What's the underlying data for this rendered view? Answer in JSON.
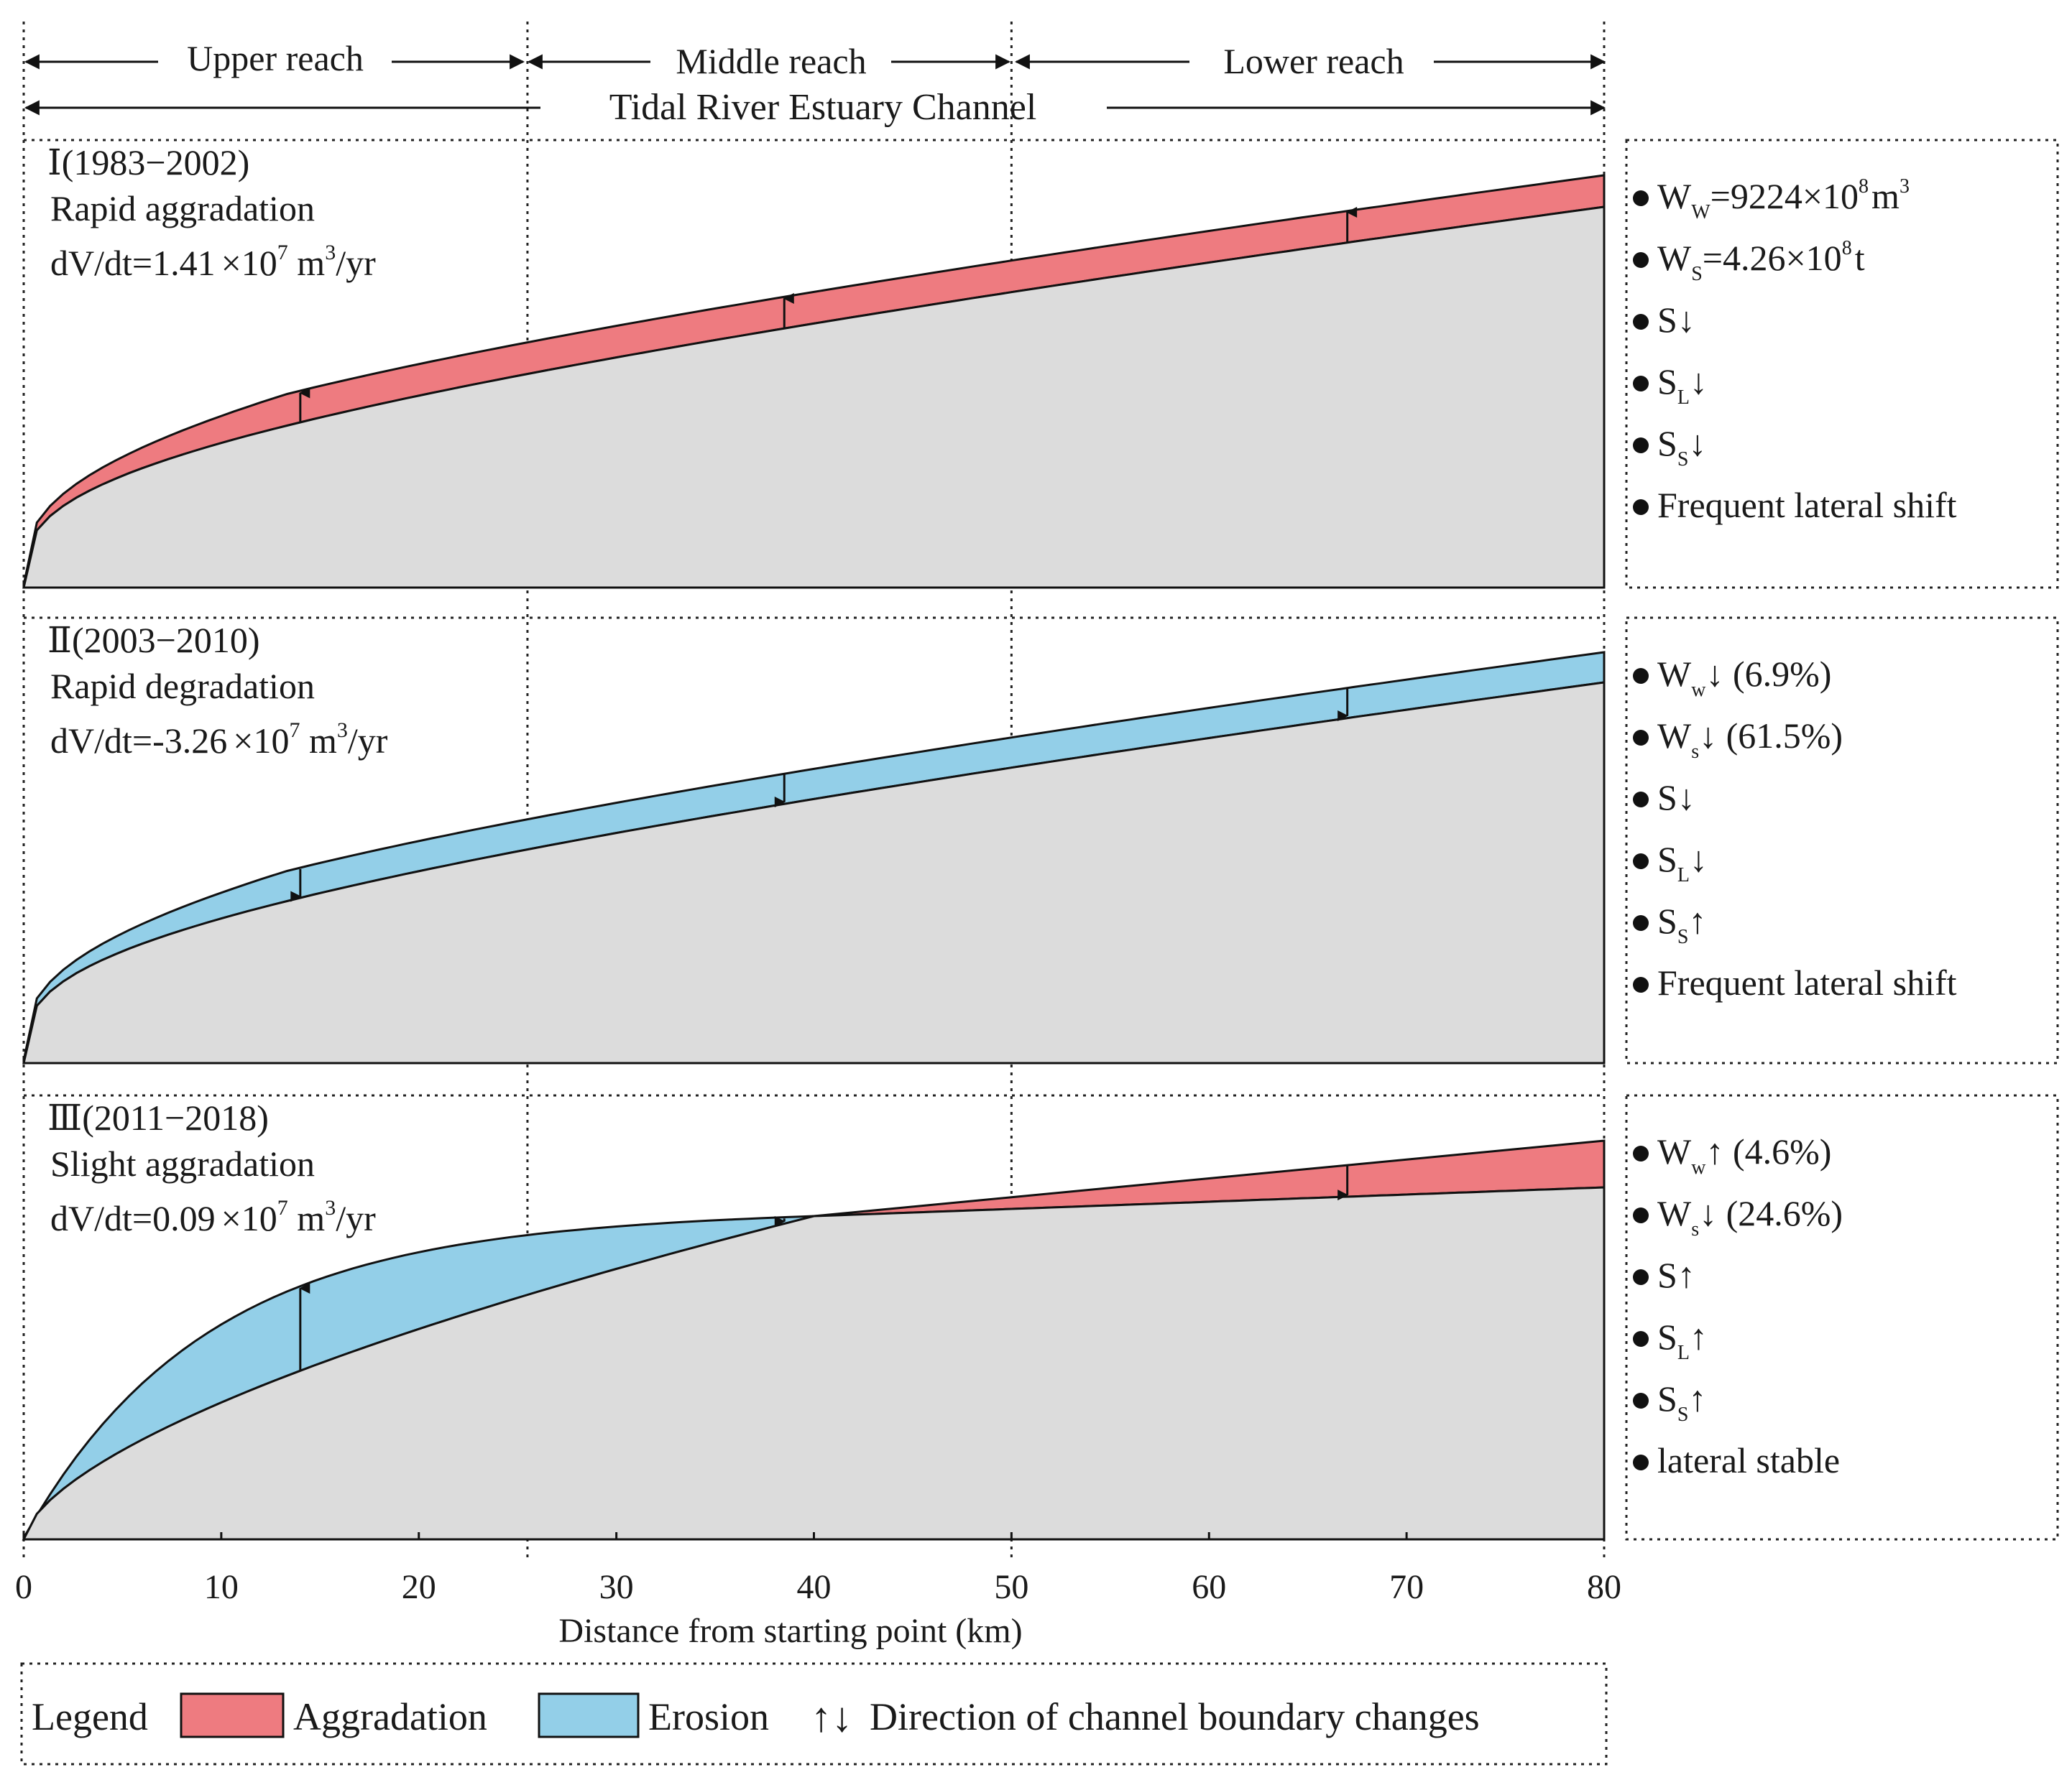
{
  "header": {
    "reaches": [
      "Upper reach",
      "Middle reach",
      "Lower reach"
    ],
    "channel": "Tidal River Estuary Channel"
  },
  "panels": [
    {
      "roman": "Ⅰ",
      "period": "(1983−2002)",
      "title": "Rapid aggradation",
      "rate_prefix": "dV/dt=",
      "rate_value": "1.41",
      "rate_unit": "×10",
      "rate_exp": "7",
      "rate_tail1": " m",
      "rate_tail_exp": "3",
      "rate_tail2": "/yr",
      "band_type": "aggradation",
      "arrow_dir": "up",
      "notes": [
        {
          "main": "W",
          "sub": "W",
          "rest": "=9224×10",
          "sup": "8",
          "rest2": "m",
          "sup2": "3"
        },
        {
          "main": "W",
          "sub": "S",
          "rest": "=4.26×10",
          "sup": "8",
          "rest2": "t",
          "sup2": ""
        },
        {
          "main": "S",
          "sub": "",
          "rest": "↓",
          "sup": "",
          "rest2": "",
          "sup2": ""
        },
        {
          "main": "S",
          "sub": "L",
          "rest": "↓",
          "sup": "",
          "rest2": "",
          "sup2": ""
        },
        {
          "main": "S",
          "sub": "S",
          "rest": "↓",
          "sup": "",
          "rest2": "",
          "sup2": ""
        },
        {
          "main": "Frequent lateral shift",
          "sub": "",
          "rest": "",
          "sup": "",
          "rest2": "",
          "sup2": ""
        }
      ]
    },
    {
      "roman": "Ⅱ",
      "period": "(2003−2010)",
      "title": "Rapid degradation",
      "rate_prefix": "dV/dt=",
      "rate_value": "-3.26",
      "rate_unit": "×10",
      "rate_exp": "7",
      "rate_tail1": " m",
      "rate_tail_exp": "3",
      "rate_tail2": "/yr",
      "band_type": "erosion",
      "arrow_dir": "down",
      "notes": [
        {
          "main": "W",
          "sub": "w",
          "rest": "↓ (6.9%)",
          "sup": "",
          "rest2": "",
          "sup2": ""
        },
        {
          "main": "W",
          "sub": "s",
          "rest": "↓ (61.5%)",
          "sup": "",
          "rest2": "",
          "sup2": ""
        },
        {
          "main": "S",
          "sub": "",
          "rest": "↓",
          "sup": "",
          "rest2": "",
          "sup2": ""
        },
        {
          "main": "S",
          "sub": "L",
          "rest": "↓",
          "sup": "",
          "rest2": "",
          "sup2": ""
        },
        {
          "main": "S",
          "sub": "S",
          "rest": "↑",
          "sup": "",
          "rest2": "",
          "sup2": ""
        },
        {
          "main": "Frequent lateral shift",
          "sub": "",
          "rest": "",
          "sup": "",
          "rest2": "",
          "sup2": ""
        }
      ]
    },
    {
      "roman": "Ⅲ",
      "period": "(2011−2018)",
      "title": "Slight aggradation",
      "rate_prefix": "dV/dt=",
      "rate_value": "0.09",
      "rate_unit": "×10",
      "rate_exp": "7",
      "rate_tail1": " m",
      "rate_tail_exp": "3",
      "rate_tail2": "/yr",
      "band_type": "mixed",
      "arrow_dir": "mixed",
      "notes": [
        {
          "main": "W",
          "sub": "w",
          "rest": "↑ (4.6%)",
          "sup": "",
          "rest2": "",
          "sup2": ""
        },
        {
          "main": "W",
          "sub": "s",
          "rest": "↓ (24.6%)",
          "sup": "",
          "rest2": "",
          "sup2": ""
        },
        {
          "main": "S",
          "sub": "",
          "rest": "↑",
          "sup": "",
          "rest2": "",
          "sup2": ""
        },
        {
          "main": "S",
          "sub": "L",
          "rest": "↑",
          "sup": "",
          "rest2": "",
          "sup2": ""
        },
        {
          "main": "S",
          "sub": "S",
          "rest": "↑",
          "sup": "",
          "rest2": "",
          "sup2": ""
        },
        {
          "main": "lateral stable",
          "sub": "",
          "rest": "",
          "sup": "",
          "rest2": "",
          "sup2": ""
        }
      ]
    }
  ],
  "chart_data": {
    "type": "area",
    "xlabel": "Distance from starting point (km)",
    "xlim": [
      0,
      80
    ],
    "xticks": [
      0,
      10,
      20,
      30,
      40,
      50,
      60,
      70,
      80
    ],
    "tick_labels": [
      "0",
      "10",
      "20",
      "30",
      "40",
      "50",
      "60",
      "70",
      "80"
    ],
    "reach_boundaries_km": [
      0,
      25.5,
      50,
      80
    ],
    "arrow_positions_km": [
      14,
      38.5,
      67
    ]
  },
  "legend": {
    "title": "Legend",
    "aggradation": "Aggradation",
    "erosion": "Erosion",
    "arrows_symbol": "↑↓",
    "arrows_label": "Direction of channel boundary changes"
  },
  "colors": {
    "aggradation": "#ee7b80",
    "erosion": "#93cfe8",
    "bed": "#dcdcdc"
  }
}
